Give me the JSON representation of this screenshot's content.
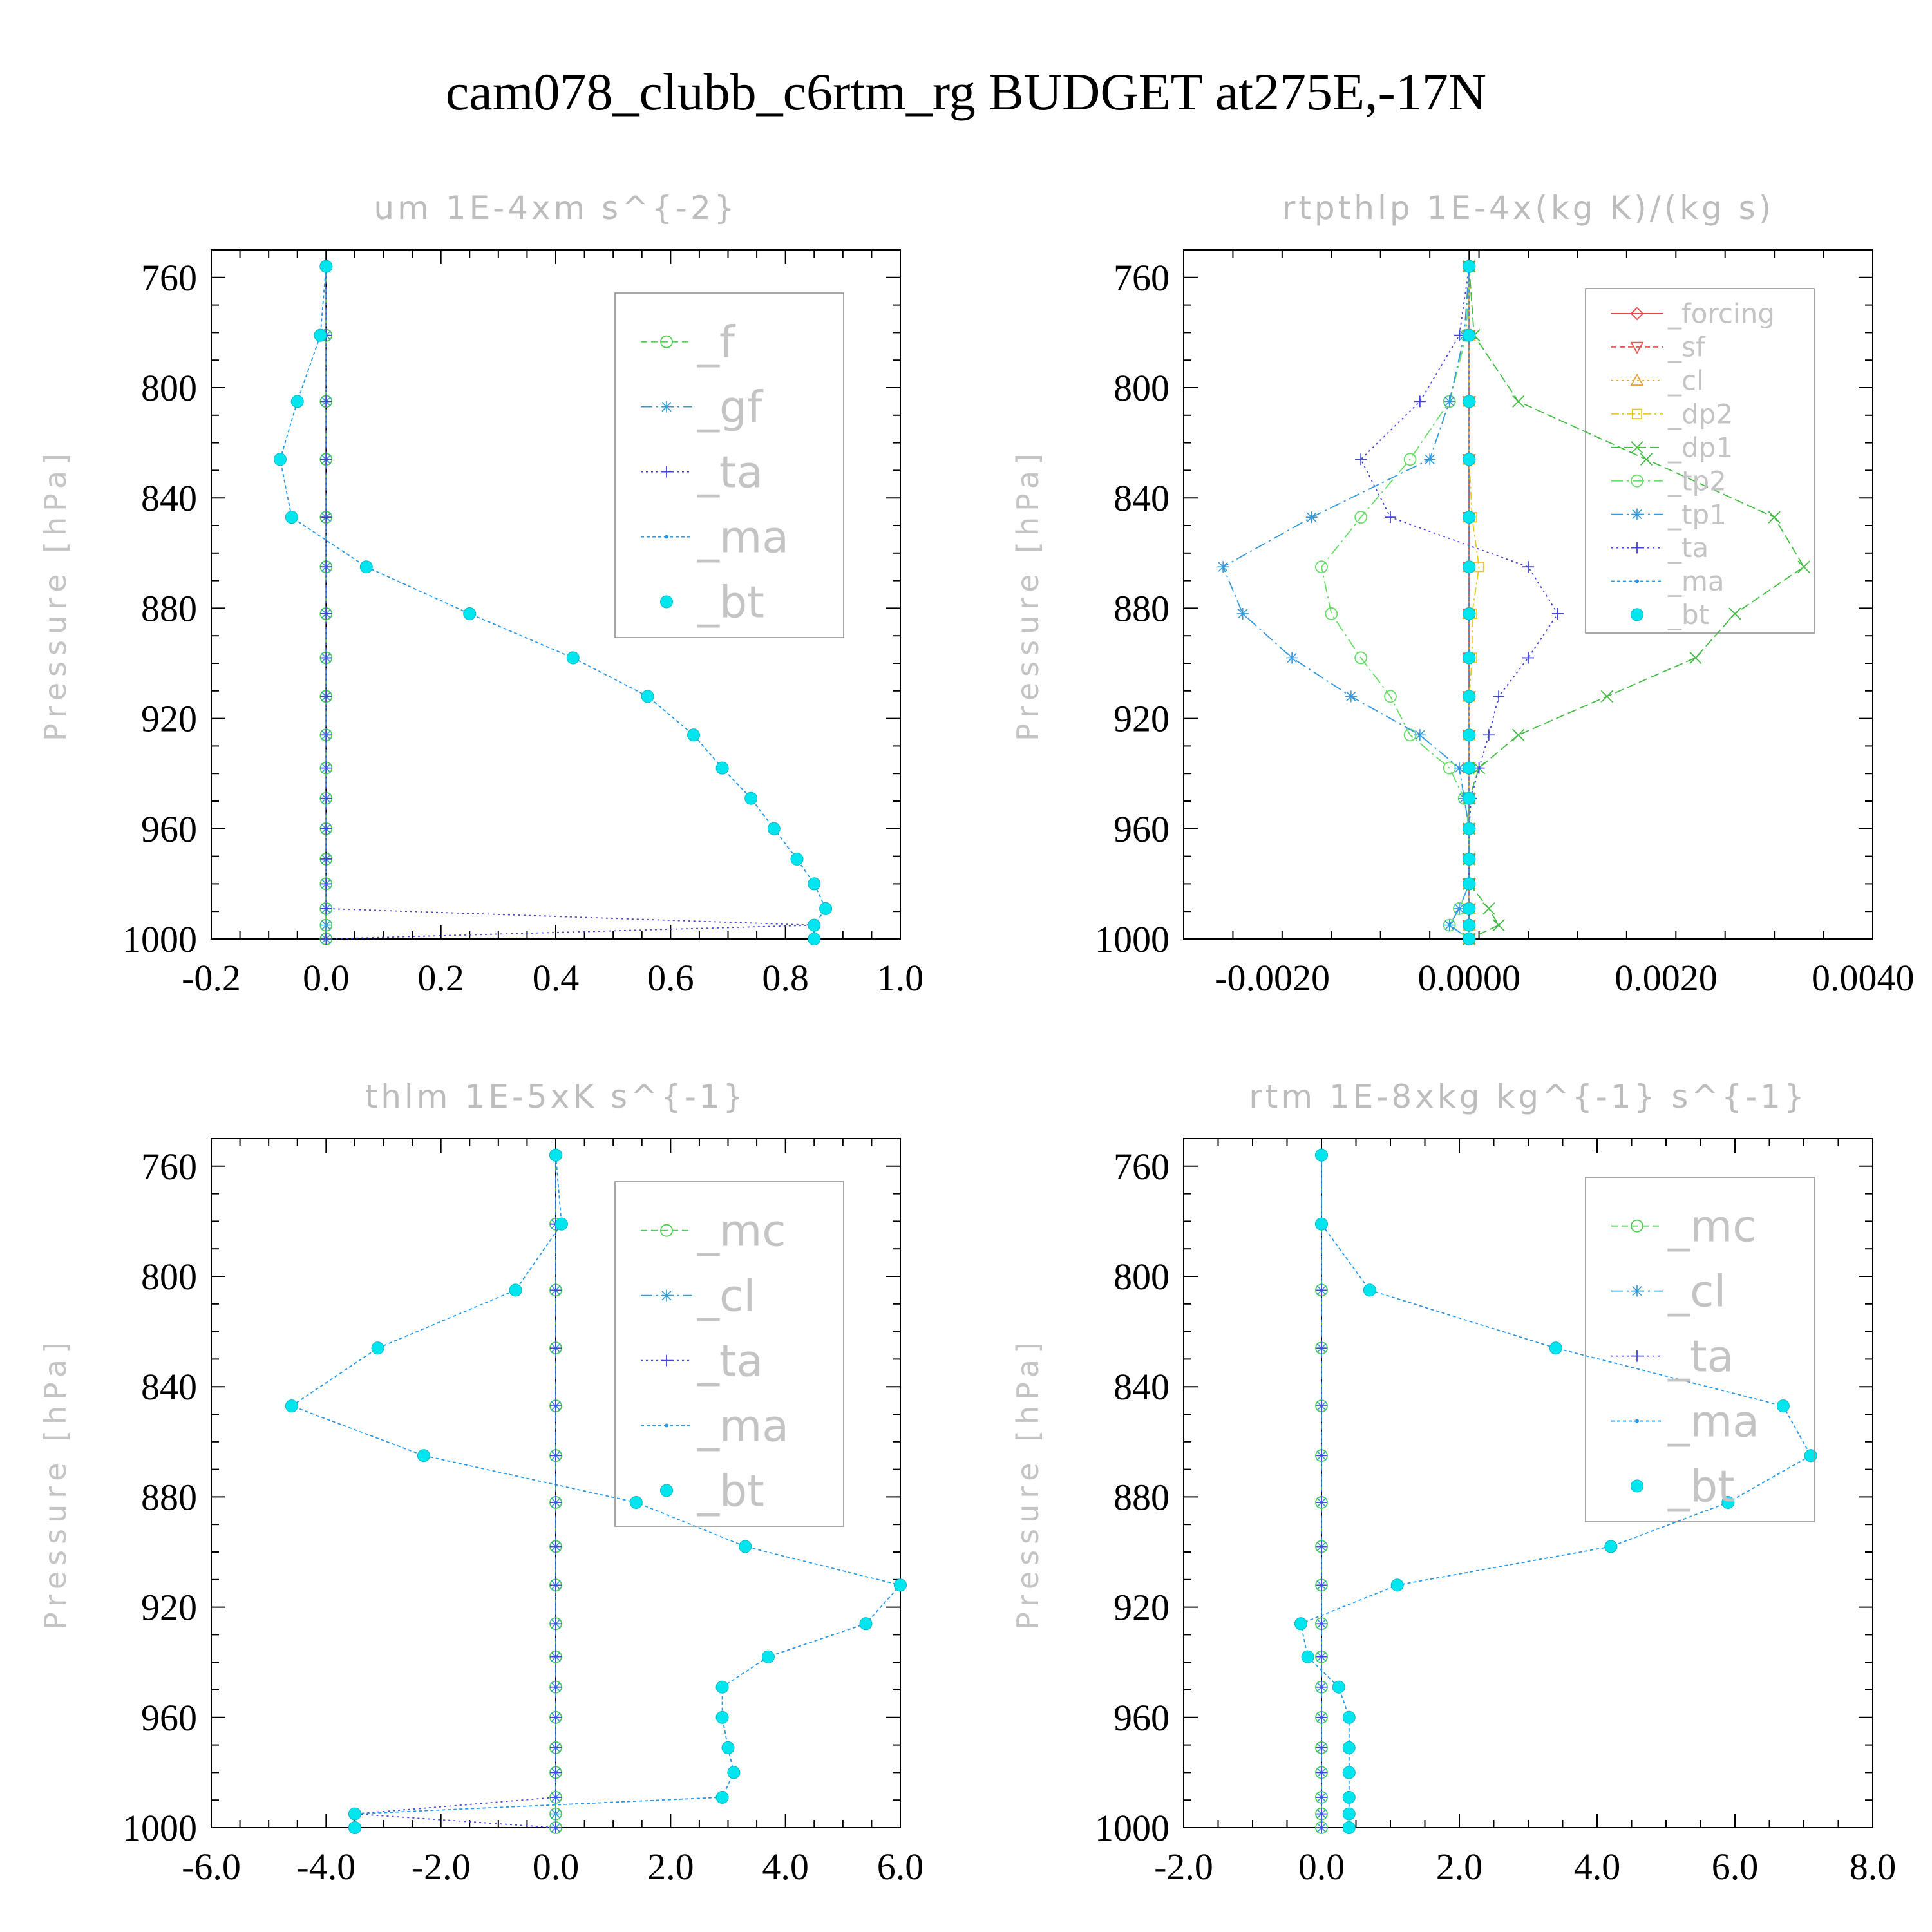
{
  "title": "cam078_clubb_c6rtm_rg  BUDGET at275E,-17N",
  "chart_data": [
    {
      "type": "line",
      "title": "um  1E-4xm s^{-2}",
      "ylabel": "Pressure [hPa]",
      "xlim": [
        -0.2,
        1.0
      ],
      "xticks": [
        "-0.2",
        "0.0",
        "0.2",
        "0.4",
        "0.6",
        "0.8",
        "1.0"
      ],
      "ylim": [
        750,
        1000
      ],
      "yticks": [
        "760",
        "800",
        "840",
        "880",
        "920",
        "960",
        "1000"
      ],
      "levels": [
        756,
        781,
        805,
        826,
        847,
        865,
        882,
        898,
        912,
        926,
        938,
        949,
        960,
        971,
        980,
        989,
        995,
        1000
      ],
      "legend": [
        "_f",
        "_gf",
        "_ta",
        "_ma",
        "_bt"
      ],
      "legend_font": 68,
      "series": [
        {
          "name": "_f",
          "color": "#4dd04d",
          "marker": "circle",
          "dash": "10,6",
          "values": [
            0,
            0,
            0,
            0,
            0,
            0,
            0,
            0,
            0,
            0,
            0,
            0,
            0,
            0,
            0,
            0,
            0,
            0
          ]
        },
        {
          "name": "_gf",
          "color": "#3399cc",
          "marker": "star",
          "dash": "18,6,3,6",
          "values": [
            0,
            0,
            0,
            0,
            0,
            0,
            0,
            0,
            0,
            0,
            0,
            0,
            0,
            0,
            0,
            0,
            0,
            0
          ]
        },
        {
          "name": "_ta",
          "color": "#4444dd",
          "marker": "plus",
          "dash": "3,5",
          "values": [
            0,
            0,
            0,
            0,
            0,
            0,
            0,
            0,
            0,
            0,
            0,
            0,
            0,
            0,
            0,
            0,
            0.85,
            0
          ]
        },
        {
          "name": "_ma",
          "color": "#2299ee",
          "marker": "dot",
          "dash": "5,4",
          "values": [
            0.0,
            -0.01,
            -0.05,
            -0.08,
            -0.06,
            0.07,
            0.25,
            0.43,
            0.56,
            0.64,
            0.69,
            0.74,
            0.78,
            0.82,
            0.85,
            0.87,
            0.85,
            0.85
          ]
        },
        {
          "name": "_bt",
          "color": "#00e5ee",
          "marker": "filled",
          "dash": "",
          "values": [
            0.0,
            -0.01,
            -0.05,
            -0.08,
            -0.06,
            0.07,
            0.25,
            0.43,
            0.56,
            0.64,
            0.69,
            0.74,
            0.78,
            0.82,
            0.85,
            0.87,
            0.85,
            0.85
          ]
        }
      ]
    },
    {
      "type": "line",
      "title": "rtpthlp  1E-4x(kg K)/(kg s)",
      "ylabel": "Pressure [hPa]",
      "xlim": [
        -0.0029,
        0.0041
      ],
      "xticks": [
        "-0.0020",
        "0.0000",
        "0.0020",
        "0.0040"
      ],
      "ylim": [
        750,
        1000
      ],
      "yticks": [
        "760",
        "800",
        "840",
        "880",
        "920",
        "960",
        "1000"
      ],
      "levels": [
        756,
        781,
        805,
        826,
        847,
        865,
        882,
        898,
        912,
        926,
        938,
        949,
        960,
        971,
        980,
        989,
        995,
        1000
      ],
      "legend": [
        "_forcing",
        "_sf",
        "_cl",
        "_dp2",
        "_dp1",
        "_tp2",
        "_tp1",
        "_ta",
        "_ma",
        "_bt"
      ],
      "legend_font": 42,
      "series": [
        {
          "name": "_forcing",
          "color": "#ee4444",
          "marker": "diamond",
          "dash": "",
          "values": [
            0,
            0,
            0,
            0,
            0,
            0,
            0,
            0,
            0,
            0,
            0,
            0,
            0,
            0,
            0,
            0,
            0,
            0
          ]
        },
        {
          "name": "_sf",
          "color": "#ee5555",
          "marker": "triangle-down",
          "dash": "8,5",
          "values": [
            0,
            0,
            0,
            0,
            0,
            0,
            0,
            0,
            0,
            0,
            0,
            0,
            0,
            0,
            0,
            0,
            0,
            0
          ]
        },
        {
          "name": "_cl",
          "color": "#f0a030",
          "marker": "triangle",
          "dash": "3,5",
          "values": [
            0,
            0,
            0,
            0,
            0,
            0,
            0,
            0,
            0,
            0,
            0,
            0,
            0,
            0,
            0,
            0,
            0,
            0
          ]
        },
        {
          "name": "_dp2",
          "color": "#e8c820",
          "marker": "square",
          "dash": "12,5,3,5",
          "values": [
            0,
            0,
            0,
            0,
            3e-05,
            0.0001,
            3e-05,
            3e-05,
            0,
            0,
            0,
            0,
            0,
            0,
            0,
            0,
            0,
            0
          ]
        },
        {
          "name": "_dp1",
          "color": "#44bb44",
          "marker": "x",
          "dash": "14,6",
          "values": [
            0,
            5e-05,
            0.0005,
            0.0018,
            0.0031,
            0.0034,
            0.0027,
            0.0023,
            0.0014,
            0.0005,
            0.0001,
            0,
            0,
            0,
            0,
            0.0002,
            0.0003,
            0
          ]
        },
        {
          "name": "_tp2",
          "color": "#66dd66",
          "marker": "circle",
          "dash": "18,6,3,6",
          "values": [
            0,
            -3e-05,
            -0.0002,
            -0.0006,
            -0.0011,
            -0.0015,
            -0.0014,
            -0.0011,
            -0.0008,
            -0.0006,
            -0.0002,
            -5e-05,
            0,
            0,
            0,
            -0.0001,
            -0.0002,
            0
          ]
        },
        {
          "name": "_tp1",
          "color": "#3399dd",
          "marker": "star",
          "dash": "18,6,3,6",
          "values": [
            0,
            -5e-05,
            -0.0002,
            -0.0004,
            -0.0016,
            -0.0025,
            -0.0023,
            -0.0018,
            -0.0012,
            -0.0005,
            -0.0001,
            -5e-05,
            0,
            0,
            0,
            -0.0001,
            -0.0002,
            0
          ]
        },
        {
          "name": "_ta",
          "color": "#4444dd",
          "marker": "plus",
          "dash": "3,5",
          "values": [
            0,
            -0.0001,
            -0.0005,
            -0.0011,
            -0.0008,
            0.0006,
            0.0009,
            0.0006,
            0.0003,
            0.0002,
            0.0001,
            2e-05,
            0,
            0,
            0,
            0,
            0,
            0
          ]
        },
        {
          "name": "_ma",
          "color": "#2299ee",
          "marker": "dot",
          "dash": "5,4",
          "values": [
            0,
            0,
            0,
            0,
            0,
            0,
            0,
            0,
            0,
            0,
            0,
            0,
            0,
            0,
            0,
            0,
            0,
            0
          ]
        },
        {
          "name": "_bt",
          "color": "#00e5ee",
          "marker": "filled",
          "dash": "",
          "values": [
            0,
            0,
            0,
            0,
            0,
            0,
            0,
            0,
            0,
            0,
            0,
            0,
            0,
            0,
            0,
            0,
            0,
            0
          ]
        }
      ]
    },
    {
      "type": "line",
      "title": "thlm  1E-5xK s^{-1}",
      "ylabel": "Pressure [hPa]",
      "xlim": [
        -6.0,
        6.0
      ],
      "xticks": [
        "-6.0",
        "-4.0",
        "-2.0",
        "0.0",
        "2.0",
        "4.0",
        "6.0"
      ],
      "ylim": [
        750,
        1000
      ],
      "yticks": [
        "760",
        "800",
        "840",
        "880",
        "920",
        "960",
        "1000"
      ],
      "levels": [
        756,
        781,
        805,
        826,
        847,
        865,
        882,
        898,
        912,
        926,
        938,
        949,
        960,
        971,
        980,
        989,
        995,
        1000
      ],
      "legend": [
        "_mc",
        "_cl",
        "_ta",
        "_ma",
        "_bt"
      ],
      "legend_font": 68,
      "series": [
        {
          "name": "_mc",
          "color": "#4dd04d",
          "marker": "circle",
          "dash": "10,6",
          "values": [
            0,
            0,
            0,
            0,
            0,
            0,
            0,
            0,
            0,
            0,
            0,
            0,
            0,
            0,
            0,
            0,
            0,
            0
          ]
        },
        {
          "name": "_cl",
          "color": "#3399cc",
          "marker": "star",
          "dash": "18,6,3,6",
          "values": [
            0,
            0,
            0,
            0,
            0,
            0,
            0,
            0,
            0,
            0,
            0,
            0,
            0,
            0,
            0,
            0,
            0,
            0
          ]
        },
        {
          "name": "_ta",
          "color": "#4444dd",
          "marker": "plus",
          "dash": "3,5",
          "values": [
            0,
            0,
            0,
            0,
            0,
            0,
            0,
            0,
            0,
            0,
            0,
            0,
            0,
            0,
            0,
            0,
            -3.5,
            0
          ]
        },
        {
          "name": "_ma",
          "color": "#2299ee",
          "marker": "dot",
          "dash": "5,4",
          "values": [
            0.0,
            0.1,
            -0.7,
            -3.1,
            -4.6,
            -2.3,
            1.4,
            3.3,
            6.0,
            5.4,
            3.7,
            2.9,
            2.9,
            3.0,
            3.1,
            2.9,
            -3.5,
            -3.5
          ]
        },
        {
          "name": "_bt",
          "color": "#00e5ee",
          "marker": "filled",
          "dash": "",
          "values": [
            0.0,
            0.1,
            -0.7,
            -3.1,
            -4.6,
            -2.3,
            1.4,
            3.3,
            6.0,
            5.4,
            3.7,
            2.9,
            2.9,
            3.0,
            3.1,
            2.9,
            -3.5,
            -3.5
          ]
        }
      ]
    },
    {
      "type": "line",
      "title": "rtm  1E-8xkg kg^{-1} s^{-1}",
      "ylabel": "Pressure [hPa]",
      "xlim": [
        -2.0,
        8.0
      ],
      "xticks": [
        "-2.0",
        "0.0",
        "2.0",
        "4.0",
        "6.0",
        "8.0"
      ],
      "ylim": [
        750,
        1000
      ],
      "yticks": [
        "760",
        "800",
        "840",
        "880",
        "920",
        "960",
        "1000"
      ],
      "levels": [
        756,
        781,
        805,
        826,
        847,
        865,
        882,
        898,
        912,
        926,
        938,
        949,
        960,
        971,
        980,
        989,
        995,
        1000
      ],
      "legend": [
        "_mc",
        "_cl",
        "_ta",
        "_ma",
        "_bt"
      ],
      "legend_font": 68,
      "series": [
        {
          "name": "_mc",
          "color": "#4dd04d",
          "marker": "circle",
          "dash": "10,6",
          "values": [
            0,
            0,
            0,
            0,
            0,
            0,
            0,
            0,
            0,
            0,
            0,
            0,
            0,
            0,
            0,
            0,
            0,
            0
          ]
        },
        {
          "name": "_cl",
          "color": "#3399cc",
          "marker": "star",
          "dash": "18,6,3,6",
          "values": [
            0,
            0,
            0,
            0,
            0,
            0,
            0,
            0,
            0,
            0,
            0,
            0,
            0,
            0,
            0,
            0,
            0,
            0
          ]
        },
        {
          "name": "_ta",
          "color": "#4444dd",
          "marker": "plus",
          "dash": "3,5",
          "values": [
            0,
            0,
            0,
            0,
            0,
            0,
            0,
            0,
            0,
            0,
            0,
            0,
            0,
            0,
            0,
            0,
            0,
            0
          ]
        },
        {
          "name": "_ma",
          "color": "#2299ee",
          "marker": "dot",
          "dash": "5,4",
          "values": [
            0.0,
            0.0,
            0.7,
            3.4,
            6.7,
            7.1,
            5.9,
            4.2,
            1.1,
            -0.3,
            -0.2,
            0.25,
            0.4,
            0.4,
            0.4,
            0.4,
            0.4,
            0.4
          ]
        },
        {
          "name": "_bt",
          "color": "#00e5ee",
          "marker": "filled",
          "dash": "",
          "values": [
            0.0,
            0.0,
            0.7,
            3.4,
            6.7,
            7.1,
            5.9,
            4.2,
            1.1,
            -0.3,
            -0.2,
            0.25,
            0.4,
            0.4,
            0.4,
            0.4,
            0.4,
            0.4
          ]
        }
      ]
    }
  ]
}
